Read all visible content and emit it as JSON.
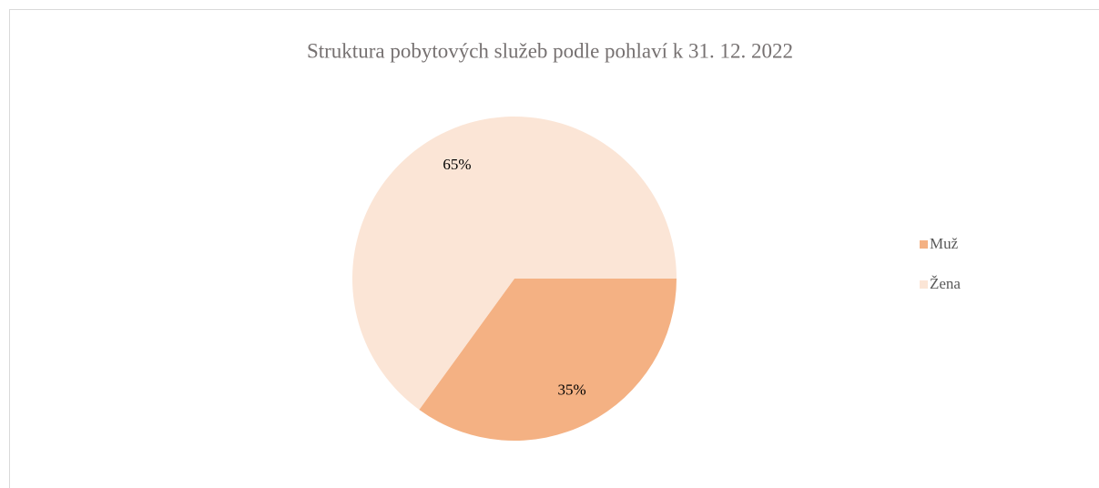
{
  "chart_data": {
    "type": "pie",
    "title": "Struktura pobytových služeb podle pohlaví k 31. 12. 2022",
    "categories": [
      "Muž",
      "Žena"
    ],
    "values": [
      35,
      65
    ],
    "value_labels": [
      "35%",
      "65%"
    ],
    "colors": [
      "#f4b183",
      "#fbe5d6"
    ],
    "legend": "right"
  }
}
